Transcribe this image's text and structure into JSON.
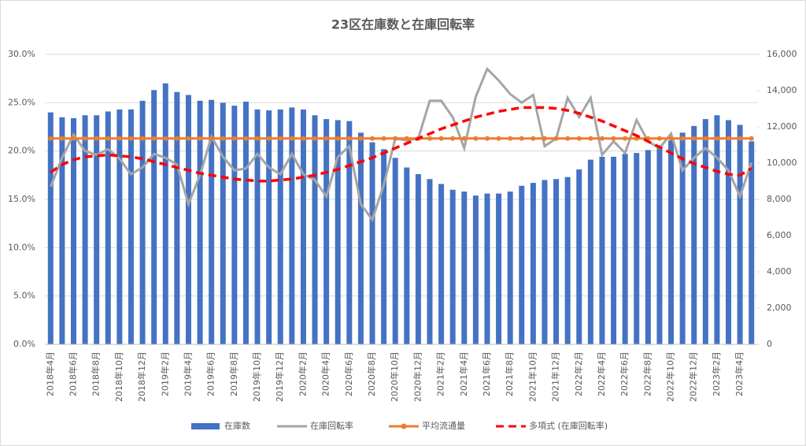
{
  "chart_data": {
    "type": "combo",
    "title": "23区在庫数と在庫回転率",
    "categories": [
      "2018年4月",
      null,
      "2018年6月",
      null,
      "2018年8月",
      null,
      "2018年10月",
      null,
      "2018年12月",
      null,
      "2019年2月",
      null,
      "2019年4月",
      null,
      "2019年6月",
      null,
      "2019年8月",
      null,
      "2019年10月",
      null,
      "2019年12月",
      null,
      "2020年2月",
      null,
      "2020年4月",
      null,
      "2020年6月",
      null,
      "2020年8月",
      null,
      "2020年10月",
      null,
      "2020年12月",
      null,
      "2021年2月",
      null,
      "2021年4月",
      null,
      "2021年6月",
      null,
      "2021年8月",
      null,
      "2021年10月",
      null,
      "2021年12月",
      null,
      "2022年2月",
      null,
      "2022年4月",
      null,
      "2022年6月",
      null,
      "2022年8月",
      null,
      "2022年10月",
      null,
      "2022年12月",
      null,
      "2023年2月",
      null,
      "2023年4月",
      null
    ],
    "ylim": [
      0,
      30
    ],
    "yticks": [
      {
        "value": 0,
        "label": "0.0%"
      },
      {
        "value": 5,
        "label": "5.0%"
      },
      {
        "value": 10,
        "label": "10.0%"
      },
      {
        "value": 15,
        "label": "15.0%"
      },
      {
        "value": 20,
        "label": "20.0%"
      },
      {
        "value": 25,
        "label": "25.0%"
      },
      {
        "value": 30,
        "label": "30.0%"
      }
    ],
    "y2lim": [
      0,
      16000
    ],
    "y2ticks": [
      0,
      {
        "value": 2000,
        "label": "2,000"
      },
      {
        "value": 4000,
        "label": "4,000"
      },
      {
        "value": 6000,
        "label": "6,000"
      },
      {
        "value": 8000,
        "label": "8,000"
      },
      {
        "value": 10000,
        "label": "10,000"
      },
      {
        "value": 12000,
        "label": "12,000"
      },
      {
        "value": 14000,
        "label": "14,000"
      },
      {
        "value": 16000,
        "label": "16,000"
      }
    ],
    "grid": true,
    "legend": "bottom",
    "series": [
      {
        "name": "在庫数",
        "type": "bar",
        "axis": "y2",
        "color": "#4472c4",
        "values": [
          12800,
          12530,
          12480,
          12640,
          12640,
          12850,
          12960,
          12960,
          13440,
          14030,
          14400,
          13920,
          13760,
          13440,
          13490,
          13330,
          13170,
          13390,
          12960,
          12910,
          12960,
          13070,
          12960,
          12640,
          12430,
          12370,
          12320,
          11680,
          11150,
          10770,
          10290,
          9760,
          9390,
          9120,
          8850,
          8530,
          8430,
          8210,
          8320,
          8320,
          8430,
          8750,
          8910,
          9070,
          9120,
          9230,
          9650,
          10190,
          10350,
          10350,
          10510,
          10560,
          10720,
          10990,
          11250,
          11680,
          12050,
          12430,
          12640,
          12370,
          12110,
          11200
        ]
      },
      {
        "name": "在庫回転率",
        "type": "line",
        "axis": "y",
        "color": "#a5a5a5",
        "values": [
          16.3,
          19.3,
          21.7,
          20.0,
          19.6,
          20.2,
          19.2,
          17.6,
          18.3,
          19.7,
          19.3,
          18.6,
          14.5,
          17.5,
          21.5,
          19.4,
          18.0,
          18.2,
          19.7,
          18.3,
          17.6,
          19.7,
          17.6,
          17.0,
          15.3,
          19.4,
          20.5,
          14.5,
          12.9,
          16.5,
          21.3,
          21.1,
          21.3,
          25.2,
          25.2,
          23.5,
          20.3,
          25.6,
          28.5,
          27.3,
          25.9,
          25.0,
          25.8,
          20.5,
          21.3,
          25.5,
          23.5,
          25.5,
          19.6,
          21.0,
          19.8,
          23.2,
          21.0,
          20.3,
          21.8,
          18.0,
          19.3,
          20.3,
          19.3,
          18.0,
          15.3,
          18.8
        ]
      },
      {
        "name": "平均流通量",
        "type": "line",
        "axis": "y2",
        "color": "#ed7d31",
        "markers": true,
        "values": [
          11360,
          11360,
          11360,
          11360,
          11360,
          11360,
          11360,
          11360,
          11360,
          11360,
          11360,
          11360,
          11360,
          11360,
          11360,
          11360,
          11360,
          11360,
          11360,
          11360,
          11360,
          11360,
          11360,
          11360,
          11360,
          11360,
          11360,
          11360,
          11360,
          11360,
          11360,
          11360,
          11360,
          11360,
          11360,
          11360,
          11360,
          11360,
          11360,
          11360,
          11360,
          11360,
          11360,
          11360,
          11360,
          11360,
          11360,
          11360,
          11360,
          11360,
          11360,
          11360,
          11360,
          11360,
          11360,
          11360,
          11360,
          11360,
          11360,
          11360,
          11360,
          11360
        ]
      },
      {
        "name": "多項式 (在庫回転率)",
        "type": "line",
        "axis": "y",
        "color": "#ff0000",
        "dashed": true,
        "values": [
          17.8,
          18.6,
          19.1,
          19.4,
          19.5,
          19.6,
          19.5,
          19.4,
          19.2,
          18.9,
          18.6,
          18.3,
          18.0,
          17.7,
          17.5,
          17.3,
          17.1,
          17.0,
          16.9,
          16.9,
          17.0,
          17.1,
          17.3,
          17.5,
          17.8,
          18.1,
          18.5,
          18.9,
          19.3,
          19.8,
          20.3,
          20.8,
          21.3,
          21.8,
          22.3,
          22.7,
          23.1,
          23.5,
          23.8,
          24.1,
          24.3,
          24.5,
          24.5,
          24.5,
          24.4,
          24.2,
          23.9,
          23.5,
          23.1,
          22.6,
          22.1,
          21.6,
          21.0,
          20.4,
          19.8,
          19.2,
          18.7,
          18.3,
          17.9,
          17.6,
          17.5,
          18.2
        ]
      }
    ]
  }
}
